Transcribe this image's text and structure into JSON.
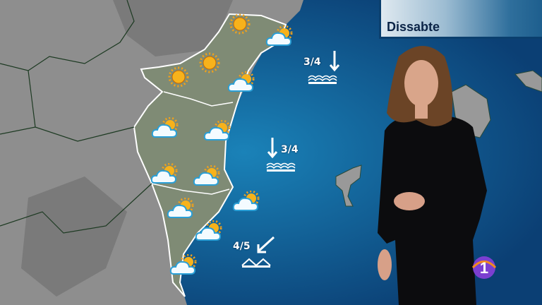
{
  "header": {
    "day_label": "Dissabte"
  },
  "colors": {
    "sea": "#0d4f86",
    "land": "#8f8f8f",
    "region": "#7d8a72",
    "banner_text": "#0b2447",
    "logo": "#7b3fd0"
  },
  "weather_icons": [
    {
      "type": "sun"
    },
    {
      "type": "sun"
    },
    {
      "type": "sun"
    },
    {
      "type": "sun-cloud"
    },
    {
      "type": "sun-cloud"
    },
    {
      "type": "sun-cloud"
    },
    {
      "type": "sun-cloud"
    },
    {
      "type": "sun-cloud"
    },
    {
      "type": "sun-cloud"
    },
    {
      "type": "sun-cloud"
    },
    {
      "type": "sun-cloud"
    },
    {
      "type": "sun-cloud"
    },
    {
      "type": "sun-cloud"
    }
  ],
  "sea_states": [
    {
      "value": "3/4",
      "wind": "arrow-down-icon",
      "waves": "choppy-waves-icon"
    },
    {
      "value": "3/4",
      "wind": "arrow-down-icon",
      "waves": "choppy-waves-icon"
    },
    {
      "value": "4/5",
      "wind": "arrow-down-left-icon",
      "waves": "rough-waves-icon"
    }
  ],
  "channel_logo": {
    "text": "1"
  }
}
